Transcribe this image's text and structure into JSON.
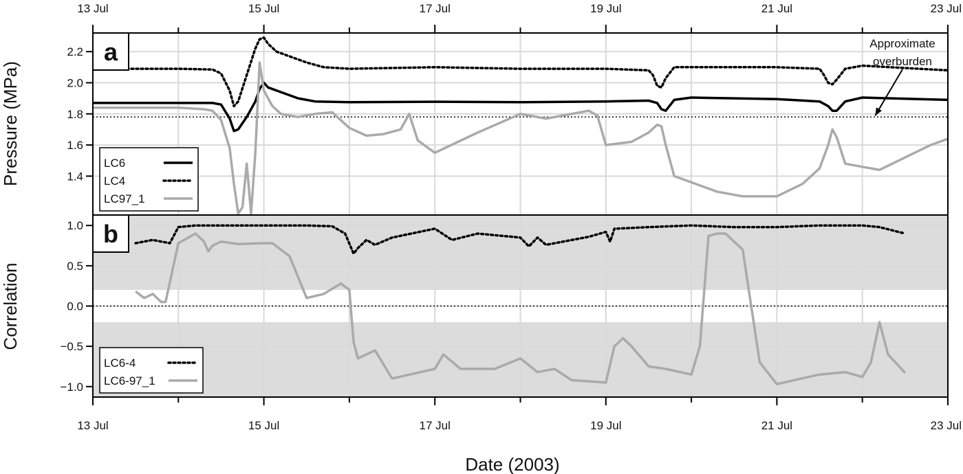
{
  "xlabel": "Date (2003)",
  "x_tick_labels": [
    "13 Jul",
    "15 Jul",
    "17 Jul",
    "19 Jul",
    "21 Jul",
    "23 Jul"
  ],
  "colors": {
    "lc6": "#000000",
    "lc4": "#000000",
    "lc97": "#aaaaaa",
    "band": "#dcdcdc",
    "grid": "#d9d9d9"
  },
  "chart_data": [
    {
      "type": "line",
      "panel_label": "a",
      "ylabel": "Pressure (MPa)",
      "xlim": [
        13,
        23
      ],
      "x_units": "days of July 2003",
      "ylim": [
        1.15,
        2.32
      ],
      "y_ticks": [
        1.4,
        1.6,
        1.8,
        2.0,
        2.2
      ],
      "y_tick_labels": [
        "1.4",
        "1.6",
        "1.8",
        "2.0",
        "2.2"
      ],
      "reference_line": {
        "y": 1.78,
        "style": "dotted"
      },
      "annotation": {
        "text_lines": [
          "Approximate",
          "overburden"
        ],
        "points_to": [
          22.15,
          1.78
        ]
      },
      "legend": {
        "position": "bottom-left",
        "entries": [
          "LC6",
          "LC4",
          "LC97_1"
        ]
      },
      "series": [
        {
          "name": "LC6",
          "style": "solid-black",
          "x": [
            13,
            14,
            14.4,
            14.5,
            14.6,
            14.65,
            14.7,
            14.8,
            14.9,
            14.95,
            15,
            15.05,
            15.2,
            15.4,
            15.6,
            16,
            17,
            18,
            19,
            19.5,
            19.6,
            19.65,
            19.7,
            19.8,
            20,
            21,
            21.5,
            21.6,
            21.65,
            21.7,
            21.8,
            22,
            23
          ],
          "y": [
            1.87,
            1.87,
            1.87,
            1.86,
            1.77,
            1.69,
            1.7,
            1.78,
            1.88,
            1.96,
            2.0,
            1.97,
            1.94,
            1.9,
            1.88,
            1.875,
            1.878,
            1.875,
            1.88,
            1.885,
            1.87,
            1.83,
            1.82,
            1.89,
            1.905,
            1.895,
            1.88,
            1.85,
            1.82,
            1.82,
            1.88,
            1.905,
            1.89
          ]
        },
        {
          "name": "LC4",
          "style": "dotted-black",
          "x": [
            13,
            14,
            14.4,
            14.5,
            14.6,
            14.65,
            14.7,
            14.8,
            14.9,
            14.95,
            15,
            15.05,
            15.15,
            15.3,
            15.5,
            15.7,
            16,
            17,
            18,
            19,
            19.5,
            19.55,
            19.6,
            19.65,
            19.7,
            19.8,
            20,
            21,
            21.5,
            21.55,
            21.6,
            21.65,
            21.7,
            21.8,
            22,
            23
          ],
          "y": [
            2.09,
            2.09,
            2.085,
            2.06,
            1.95,
            1.85,
            1.88,
            2.05,
            2.22,
            2.28,
            2.29,
            2.25,
            2.2,
            2.17,
            2.13,
            2.1,
            2.09,
            2.1,
            2.09,
            2.09,
            2.08,
            2.05,
            1.98,
            1.97,
            2.03,
            2.1,
            2.1,
            2.1,
            2.09,
            2.05,
            2.0,
            1.99,
            2.02,
            2.09,
            2.11,
            2.08
          ]
        },
        {
          "name": "LC97_1",
          "style": "solid-gray",
          "x": [
            13,
            13.5,
            14,
            14.3,
            14.4,
            14.5,
            14.6,
            14.65,
            14.7,
            14.75,
            14.8,
            14.85,
            14.9,
            14.95,
            15,
            15.1,
            15.2,
            15.4,
            15.6,
            15.8,
            16,
            16.2,
            16.4,
            16.6,
            16.7,
            16.8,
            17,
            17.5,
            18,
            18.3,
            18.6,
            18.8,
            18.9,
            19,
            19.3,
            19.5,
            19.6,
            19.65,
            19.7,
            19.8,
            20,
            20.3,
            20.6,
            21,
            21.3,
            21.5,
            21.6,
            21.65,
            21.7,
            21.8,
            22,
            22.2,
            22.5,
            22.8,
            23
          ],
          "y": [
            1.84,
            1.84,
            1.84,
            1.83,
            1.82,
            1.76,
            1.58,
            1.35,
            1.16,
            1.2,
            1.48,
            1.16,
            1.55,
            2.13,
            1.95,
            1.85,
            1.8,
            1.78,
            1.8,
            1.81,
            1.71,
            1.66,
            1.67,
            1.7,
            1.8,
            1.63,
            1.55,
            1.68,
            1.8,
            1.77,
            1.8,
            1.82,
            1.79,
            1.6,
            1.62,
            1.68,
            1.73,
            1.72,
            1.6,
            1.4,
            1.36,
            1.3,
            1.27,
            1.27,
            1.35,
            1.45,
            1.6,
            1.7,
            1.65,
            1.48,
            1.46,
            1.44,
            1.52,
            1.6,
            1.64
          ]
        }
      ]
    },
    {
      "type": "line",
      "panel_label": "b",
      "ylabel": "Correlation",
      "xlim": [
        13,
        23
      ],
      "x_units": "days of July 2003",
      "ylim": [
        -1.13,
        1.13
      ],
      "y_ticks": [
        -1.0,
        -0.5,
        0.0,
        0.5,
        1.0
      ],
      "y_tick_labels": [
        "−1.0",
        "−0.5",
        "0.0",
        "0.5",
        "1.0"
      ],
      "reference_line": {
        "y": 0.0,
        "style": "dotted"
      },
      "shaded_bands": [
        [
          0.2,
          1.13
        ],
        [
          -1.13,
          -0.2
        ]
      ],
      "legend": {
        "position": "bottom-left",
        "entries": [
          "LC6-4",
          "LC6-97_1"
        ]
      },
      "series": [
        {
          "name": "LC6-4",
          "style": "dotted-black",
          "x": [
            13.5,
            13.7,
            13.9,
            14,
            14.2,
            14.5,
            15,
            15.5,
            15.8,
            15.95,
            16.05,
            16.1,
            16.2,
            16.3,
            16.5,
            17,
            17.2,
            17.5,
            18,
            18.1,
            18.2,
            18.3,
            18.5,
            18.8,
            19,
            19.05,
            19.1,
            19.3,
            19.5,
            20,
            20.5,
            21,
            21.5,
            22,
            22.2,
            22.5
          ],
          "y": [
            0.78,
            0.82,
            0.78,
            0.98,
            1.0,
            1.0,
            1.0,
            1.0,
            0.99,
            0.9,
            0.65,
            0.72,
            0.82,
            0.76,
            0.85,
            0.96,
            0.82,
            0.9,
            0.85,
            0.74,
            0.85,
            0.76,
            0.8,
            0.86,
            0.92,
            0.8,
            0.96,
            0.97,
            0.98,
            1.0,
            0.98,
            0.98,
            1.0,
            1.0,
            0.98,
            0.9
          ]
        },
        {
          "name": "LC6-97_1",
          "style": "solid-gray",
          "x": [
            13.5,
            13.6,
            13.7,
            13.8,
            13.85,
            14,
            14.2,
            14.3,
            14.35,
            14.4,
            14.5,
            14.7,
            15,
            15.1,
            15.3,
            15.5,
            15.7,
            15.9,
            16,
            16.05,
            16.1,
            16.2,
            16.3,
            16.5,
            17,
            17.1,
            17.3,
            17.5,
            17.7,
            18,
            18.2,
            18.4,
            18.6,
            19,
            19.1,
            19.2,
            19.3,
            19.5,
            19.7,
            20,
            20.1,
            20.2,
            20.3,
            20.4,
            20.6,
            20.8,
            21,
            21.2,
            21.5,
            21.8,
            22,
            22.1,
            22.2,
            22.3,
            22.5
          ],
          "y": [
            0.18,
            0.1,
            0.15,
            0.05,
            0.05,
            0.78,
            0.9,
            0.8,
            0.68,
            0.75,
            0.8,
            0.77,
            0.78,
            0.78,
            0.62,
            0.1,
            0.15,
            0.28,
            0.2,
            -0.45,
            -0.65,
            -0.6,
            -0.55,
            -0.9,
            -0.78,
            -0.6,
            -0.78,
            -0.78,
            -0.78,
            -0.65,
            -0.82,
            -0.78,
            -0.92,
            -0.95,
            -0.5,
            -0.4,
            -0.5,
            -0.75,
            -0.78,
            -0.85,
            -0.5,
            0.87,
            0.9,
            0.9,
            0.7,
            -0.7,
            -0.97,
            -0.92,
            -0.85,
            -0.82,
            -0.88,
            -0.7,
            -0.2,
            -0.6,
            -0.83
          ]
        }
      ]
    }
  ]
}
